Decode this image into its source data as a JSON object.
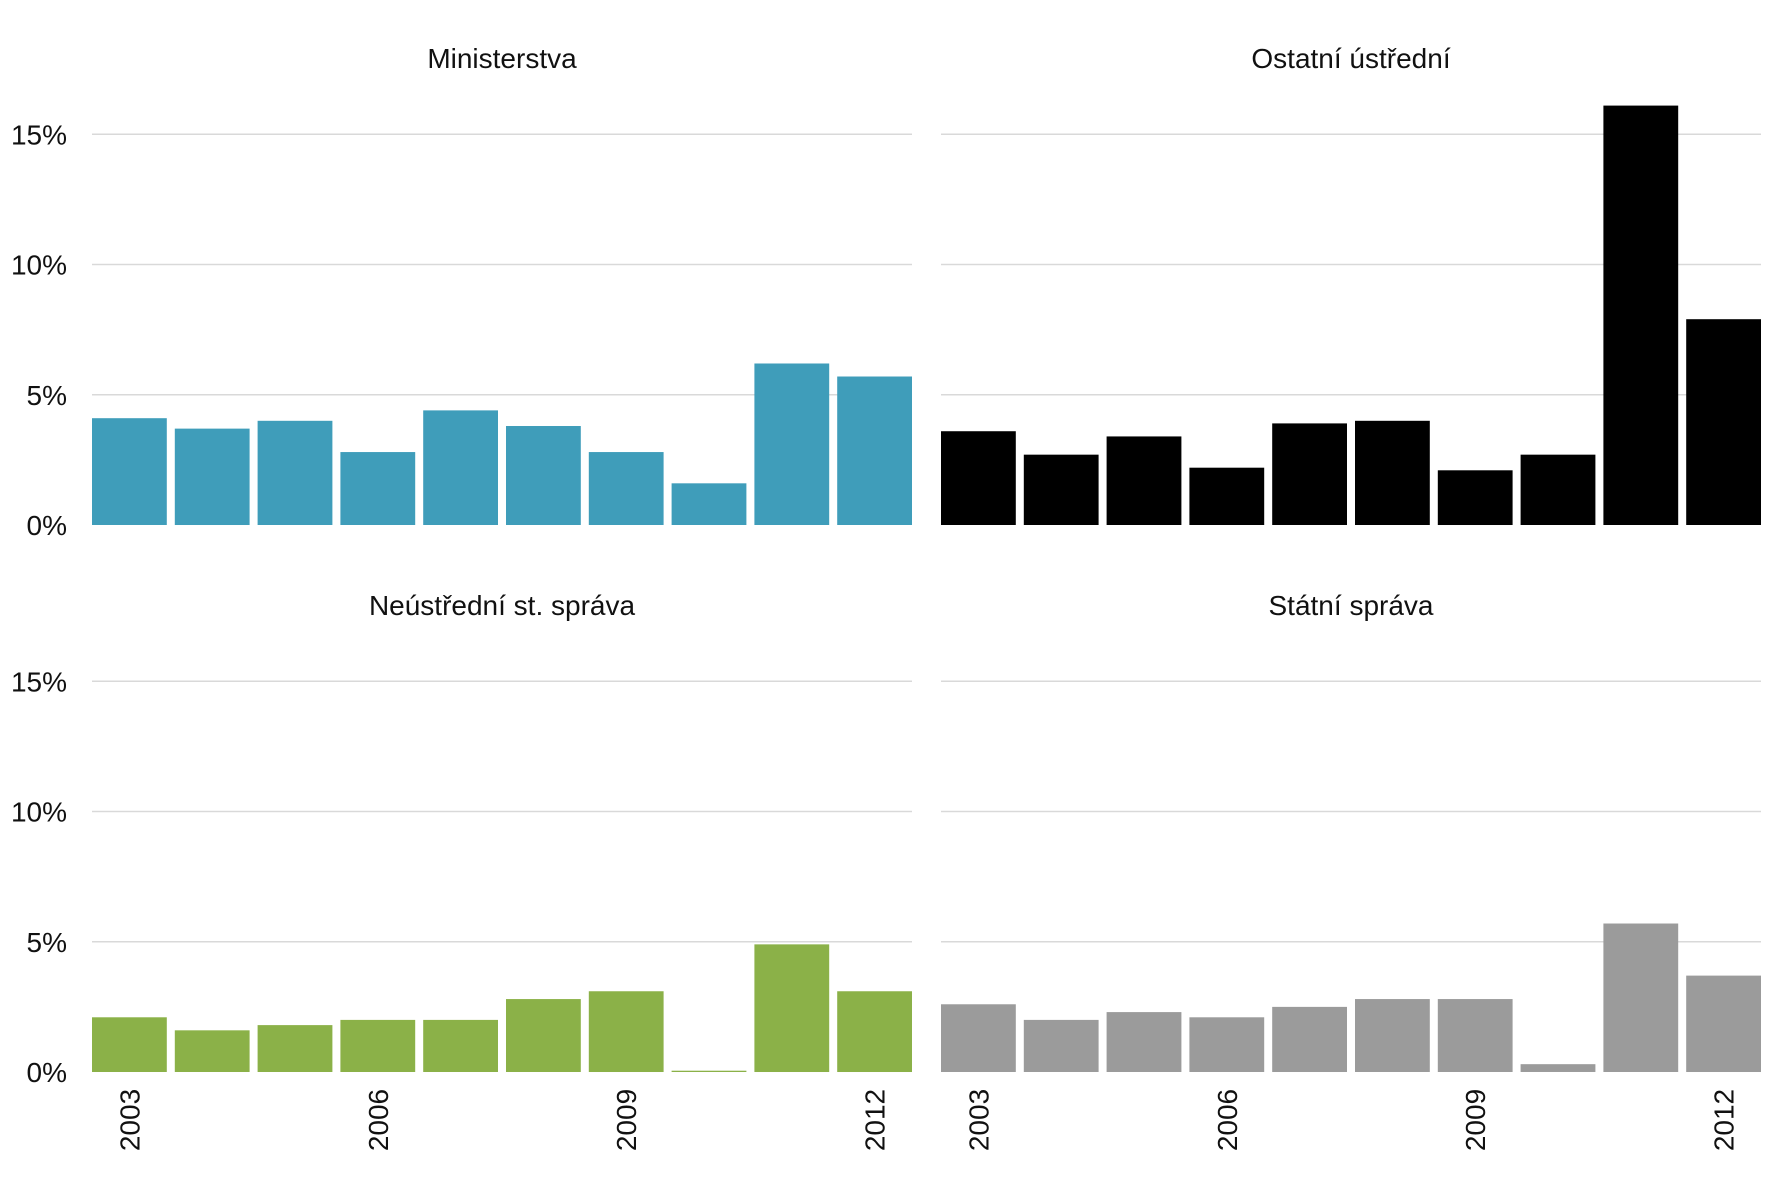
{
  "chart_data": {
    "type": "bar",
    "layout": "facet-grid-2x2",
    "y_tick_labels": [
      "0%",
      "5%",
      "10%",
      "15%"
    ],
    "y_ticks": [
      0,
      5,
      10,
      15
    ],
    "ylim": [
      0,
      16
    ],
    "y_unit": "%",
    "grid": true,
    "x_categories": [
      "2003",
      "2004",
      "2005",
      "2006",
      "2007",
      "2008",
      "2009",
      "2010",
      "2011",
      "2012"
    ],
    "x_tick_labels": [
      "2003",
      "2006",
      "2009",
      "2012"
    ],
    "facets": [
      {
        "title": "Ministerstva",
        "color": "#3f9dba",
        "values": [
          4.1,
          3.7,
          4.0,
          2.8,
          4.4,
          3.8,
          2.8,
          1.6,
          6.2,
          5.7
        ]
      },
      {
        "title": "Ostatní ústřední",
        "color": "#000000",
        "values": [
          3.6,
          2.7,
          3.4,
          2.2,
          3.9,
          4.0,
          2.1,
          2.7,
          16.1,
          7.9
        ]
      },
      {
        "title": "Neústřední st. správa",
        "color": "#8bb148",
        "values": [
          2.1,
          1.6,
          1.8,
          2.0,
          2.0,
          2.8,
          3.1,
          0.05,
          4.9,
          3.1
        ]
      },
      {
        "title": "Státní správa",
        "color": "#9b9b9b",
        "values": [
          2.6,
          2.0,
          2.3,
          2.1,
          2.5,
          2.8,
          2.8,
          0.3,
          5.7,
          3.7
        ]
      }
    ]
  }
}
